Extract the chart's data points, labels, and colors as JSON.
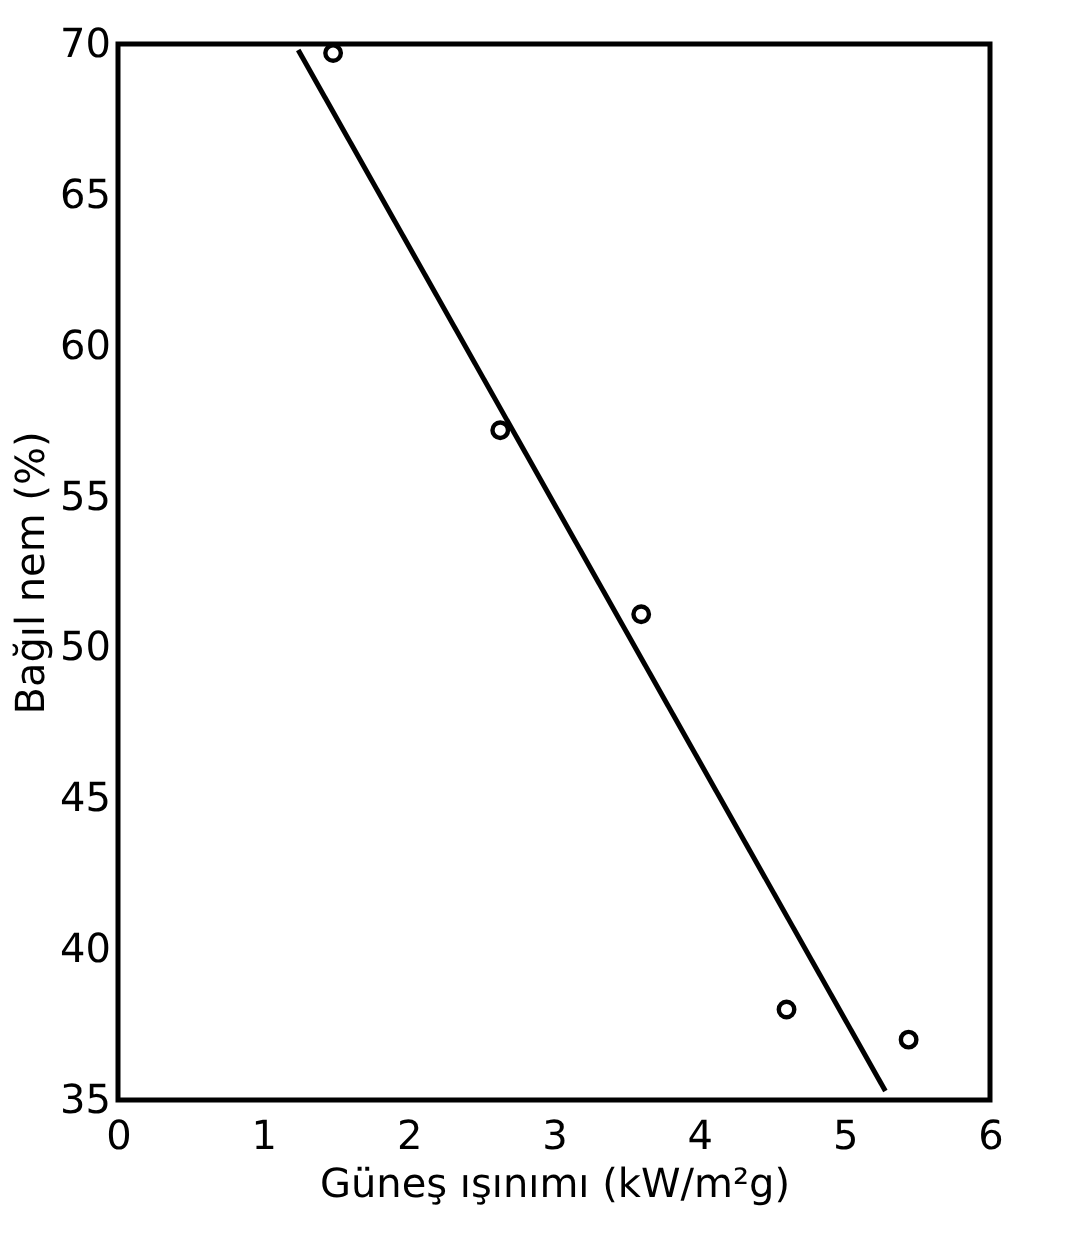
{
  "chart_data": {
    "type": "scatter",
    "xlabel": "Güneş ışınımı (kW/m²g)",
    "ylabel": "Bağıl nem (%)",
    "xlim": [
      0,
      6
    ],
    "xticks": [
      0,
      1,
      2,
      3,
      4,
      5,
      6
    ],
    "ylim": [
      35,
      70
    ],
    "yticks": [
      35,
      40,
      45,
      50,
      55,
      60,
      65,
      70
    ],
    "grid": false,
    "series": [
      {
        "marker": "circle",
        "color": "#000000",
        "x": [
          1.48,
          2.63,
          3.6,
          4.6,
          5.44
        ],
        "values": [
          69.7,
          57.2,
          51.1,
          38.0,
          37.0
        ]
      },
      {
        "type": "line",
        "line_style": "solid",
        "marker": "none",
        "color": "#000000",
        "x": [
          1.24,
          5.28
        ],
        "values": [
          69.8,
          35.3
        ]
      }
    ]
  }
}
